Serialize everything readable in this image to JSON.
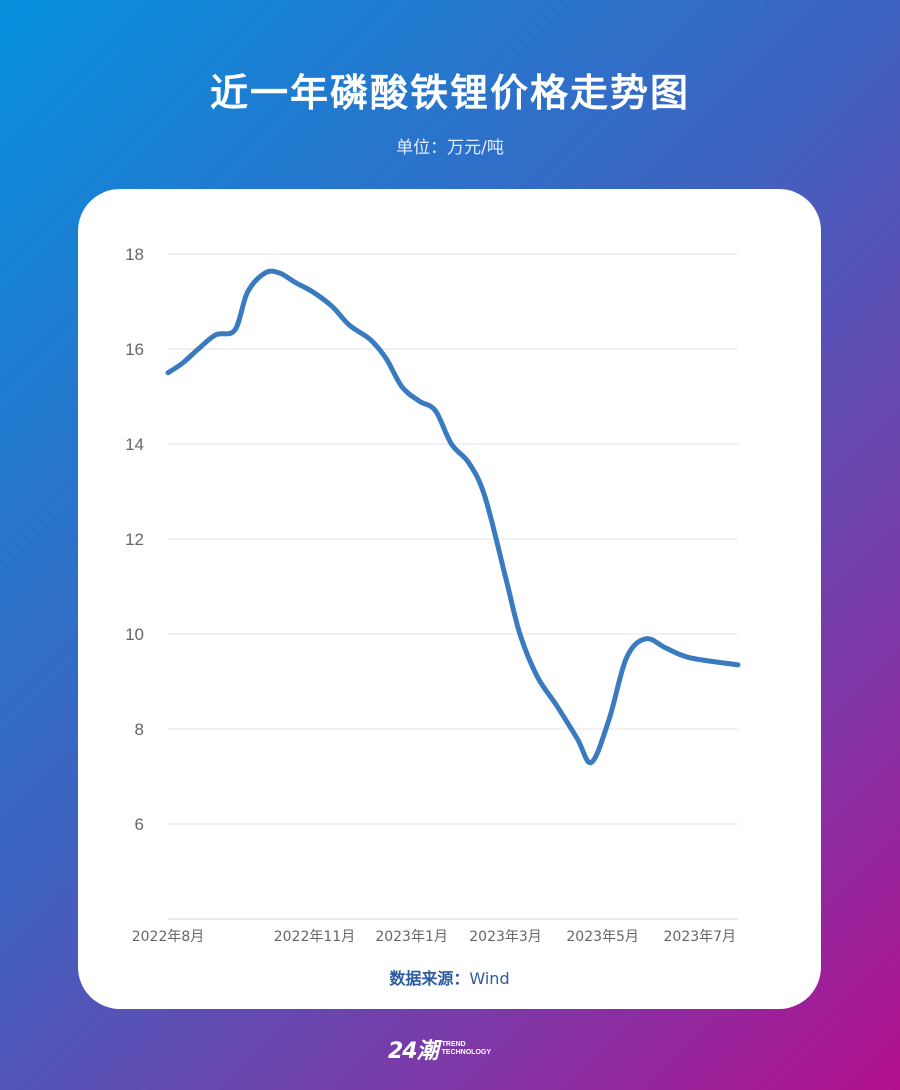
{
  "title": "近一年磷酸铁锂价格走势图",
  "subtitle": "单位：万元/吨",
  "source": {
    "label": "数据来源：",
    "value": "Wind"
  },
  "logo": {
    "mark": "24潮",
    "line1": "TREND",
    "line2": "TECHNOLOGY"
  },
  "colors": {
    "line": "#3a7bbf",
    "grid": "#e3e3e3",
    "axis": "#666666"
  },
  "chart_data": {
    "type": "line",
    "title": "近一年磷酸铁锂价格走势图",
    "ylabel": "万元/吨",
    "ylim": [
      4,
      18
    ],
    "yticks": [
      6,
      8,
      10,
      12,
      14,
      16,
      18
    ],
    "xlim": [
      "2022-08-01",
      "2023-07-25"
    ],
    "xtick_labels": [
      {
        "label": "2022年8月",
        "date": "2022-08-01"
      },
      {
        "label": "2022年11月",
        "date": "2022-11-01"
      },
      {
        "label": "2023年1月",
        "date": "2023-01-01"
      },
      {
        "label": "2023年3月",
        "date": "2023-03-01"
      },
      {
        "label": "2023年5月",
        "date": "2023-05-01"
      },
      {
        "label": "2023年7月",
        "date": "2023-07-01"
      }
    ],
    "grid": true,
    "legend": "none",
    "series": [
      {
        "points": [
          [
            "2022-08-01",
            15.5
          ],
          [
            "2022-08-10",
            15.7
          ],
          [
            "2022-08-20",
            16.0
          ],
          [
            "2022-08-31",
            16.3
          ],
          [
            "2022-09-12",
            16.4
          ],
          [
            "2022-09-20",
            17.2
          ],
          [
            "2022-10-01",
            17.6
          ],
          [
            "2022-10-10",
            17.6
          ],
          [
            "2022-10-20",
            17.4
          ],
          [
            "2022-10-31",
            17.2
          ],
          [
            "2022-11-12",
            16.9
          ],
          [
            "2022-11-23",
            16.5
          ],
          [
            "2022-12-06",
            16.2
          ],
          [
            "2022-12-16",
            15.8
          ],
          [
            "2022-12-26",
            15.2
          ],
          [
            "2023-01-06",
            14.9
          ],
          [
            "2023-01-16",
            14.7
          ],
          [
            "2023-01-26",
            14.0
          ],
          [
            "2023-02-06",
            13.6
          ],
          [
            "2023-02-16",
            12.9
          ],
          [
            "2023-03-01",
            11.2
          ],
          [
            "2023-03-10",
            10.0
          ],
          [
            "2023-03-21",
            9.1
          ],
          [
            "2023-04-02",
            8.5
          ],
          [
            "2023-04-15",
            7.8
          ],
          [
            "2023-04-24",
            7.3
          ],
          [
            "2023-05-05",
            8.2
          ],
          [
            "2023-05-16",
            9.5
          ],
          [
            "2023-05-28",
            9.9
          ],
          [
            "2023-06-10",
            9.7
          ],
          [
            "2023-06-25",
            9.5
          ],
          [
            "2023-07-25",
            9.35
          ]
        ]
      }
    ]
  }
}
